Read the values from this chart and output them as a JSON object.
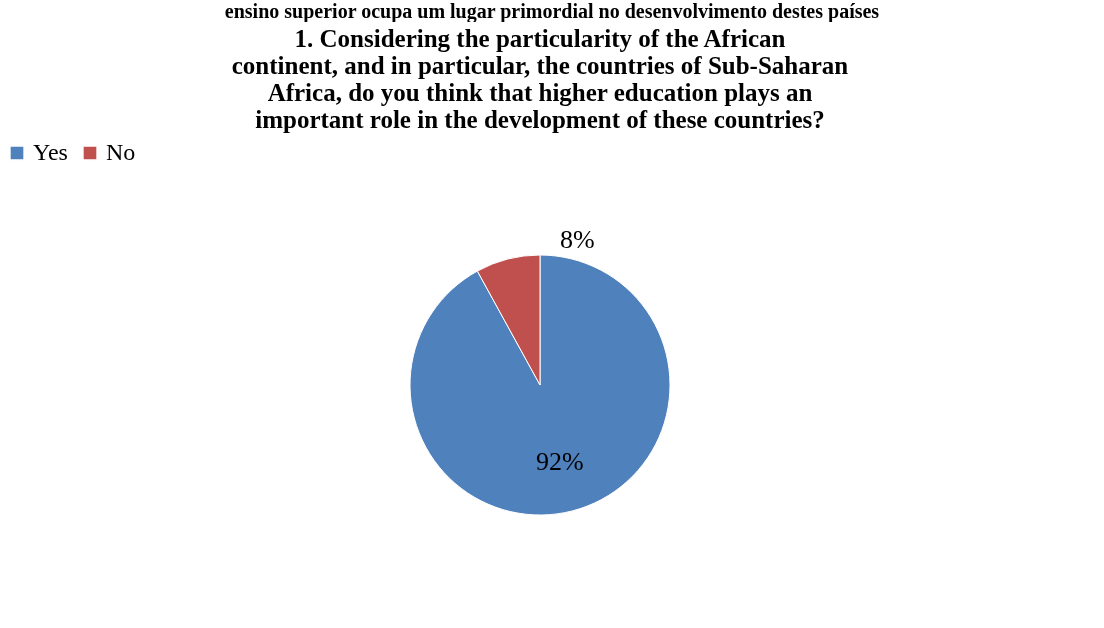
{
  "chart_data": {
    "type": "pie",
    "title": "1.      Considering the particularity of the African continent, and in particular, the countries of Sub-Saharan Africa, do you think that higher education plays an important role in the development of these countries?",
    "annotations": [
      "ensino superior ocupa um lugar primordial no desenvolvimento destes países"
    ],
    "categories": [
      "Yes",
      "No"
    ],
    "values": [
      92,
      8
    ],
    "colors": [
      "#4f81bd",
      "#c0504d"
    ],
    "value_labels": [
      "92%",
      "8%"
    ],
    "legend": "top"
  }
}
